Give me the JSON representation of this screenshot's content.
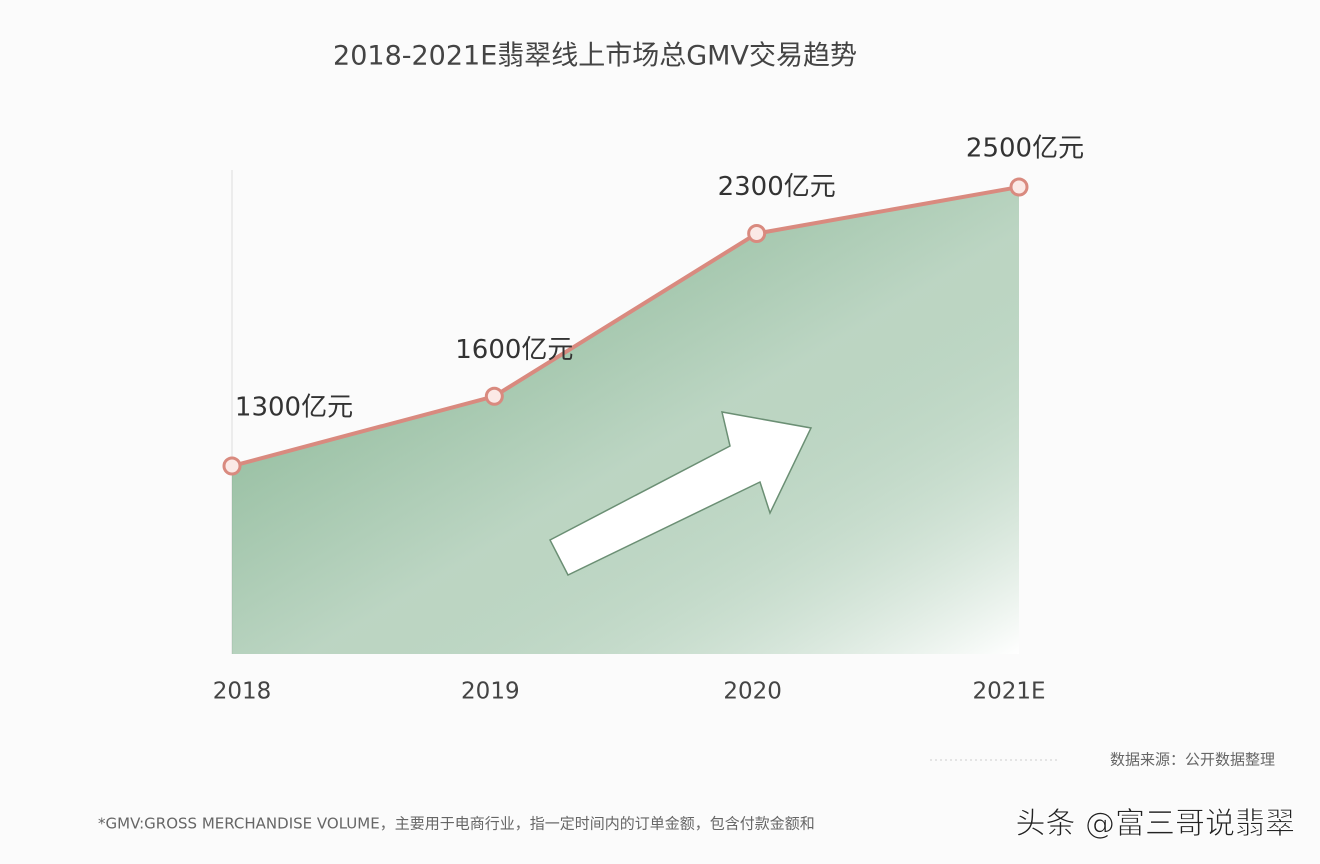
{
  "chart_data": {
    "type": "area",
    "title": "2018-2021E翡翠线上市场总GMV交易趋势",
    "categories": [
      "2018",
      "2019",
      "2020",
      "2021E"
    ],
    "values": [
      1300,
      1600,
      2300,
      2500
    ],
    "value_labels": [
      "1300亿元",
      "1600亿元",
      "2300亿元",
      "2500亿元"
    ],
    "line_color": "#d98a7f",
    "color": "#6fa77e",
    "source": "数据来源：公开数据整理",
    "footnote": "*GMV:GROSS MERCHANDISE VOLUME，主要用于电商行业，指一定时间内的订单金额，包含付款金额和",
    "watermark": "头条 @富三哥说翡翠"
  }
}
